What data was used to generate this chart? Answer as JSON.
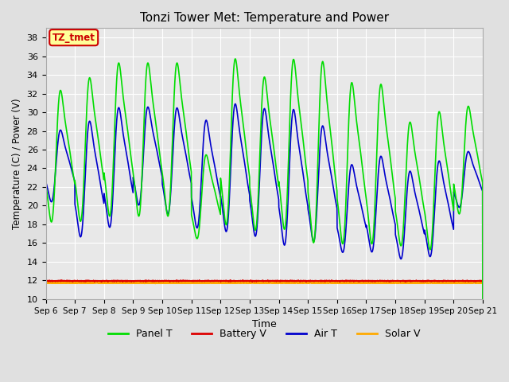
{
  "title": "Tonzi Tower Met: Temperature and Power",
  "xlabel": "Time",
  "ylabel": "Temperature (C) / Power (V)",
  "ylim": [
    10,
    39
  ],
  "yticks": [
    10,
    12,
    14,
    16,
    18,
    20,
    22,
    24,
    26,
    28,
    30,
    32,
    34,
    36,
    38
  ],
  "bg_color": "#e0e0e0",
  "plot_bg_color": "#e8e8e8",
  "grid_color": "#ffffff",
  "annotation_text": "TZ_tmet",
  "annotation_bg": "#ffff99",
  "annotation_border": "#cc0000",
  "battery_v": 11.95,
  "solar_v": 11.75,
  "colors": {
    "panel_t": "#00dd00",
    "battery_v": "#dd0000",
    "air_t": "#0000cc",
    "solar_v": "#ffaa00"
  },
  "line_widths": {
    "panel_t": 1.2,
    "battery_v": 1.2,
    "air_t": 1.2,
    "solar_v": 1.5
  },
  "panel_peaks": [
    34.0,
    35.5,
    37.2,
    37.2,
    37.2,
    26.5,
    37.8,
    35.7,
    37.8,
    37.7,
    35.2,
    35.0,
    30.5,
    31.8,
    32.0
  ],
  "panel_troughs": [
    17.5,
    17.5,
    18.0,
    18.0,
    18.0,
    16.0,
    17.0,
    16.5,
    16.5,
    15.0,
    15.0,
    15.0,
    15.0,
    14.5,
    18.5
  ],
  "air_peaks": [
    29.0,
    30.5,
    32.0,
    31.8,
    31.8,
    30.5,
    32.5,
    32.0,
    32.0,
    30.0,
    25.5,
    26.5,
    24.8,
    26.0,
    26.5
  ],
  "air_troughs": [
    20.0,
    16.0,
    17.0,
    19.5,
    18.5,
    17.0,
    16.5,
    16.0,
    15.0,
    15.5,
    14.5,
    14.5,
    13.8,
    14.0,
    19.5
  ]
}
